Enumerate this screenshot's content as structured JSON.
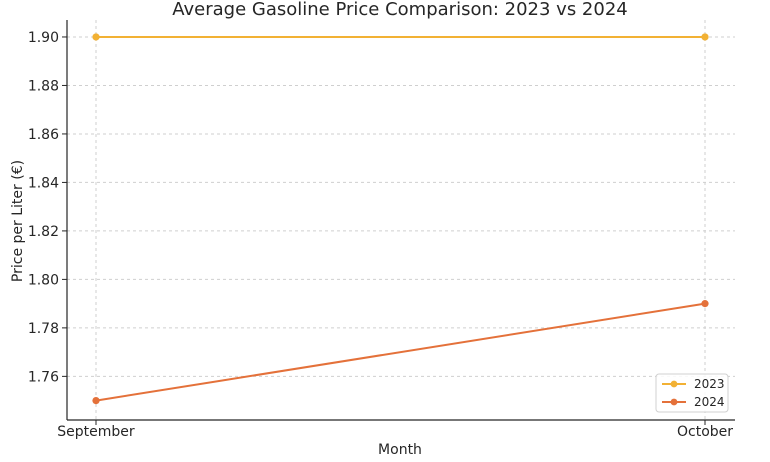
{
  "chart_data": {
    "type": "line",
    "title": "Average Gasoline Price Comparison: 2023 vs 2024",
    "xlabel": "Month",
    "ylabel": "Price per Liter (€)",
    "categories": [
      "September",
      "October"
    ],
    "ylim": [
      1.742,
      1.907
    ],
    "yticks": [
      "1.76",
      "1.78",
      "1.80",
      "1.82",
      "1.84",
      "1.86",
      "1.88",
      "1.90"
    ],
    "grid": true,
    "legend_position": "bottom-right",
    "series": [
      {
        "name": "2023",
        "values": [
          1.9,
          1.9
        ],
        "color": "#f2b134"
      },
      {
        "name": "2024",
        "values": [
          1.75,
          1.79
        ],
        "color": "#e4713a"
      }
    ]
  }
}
